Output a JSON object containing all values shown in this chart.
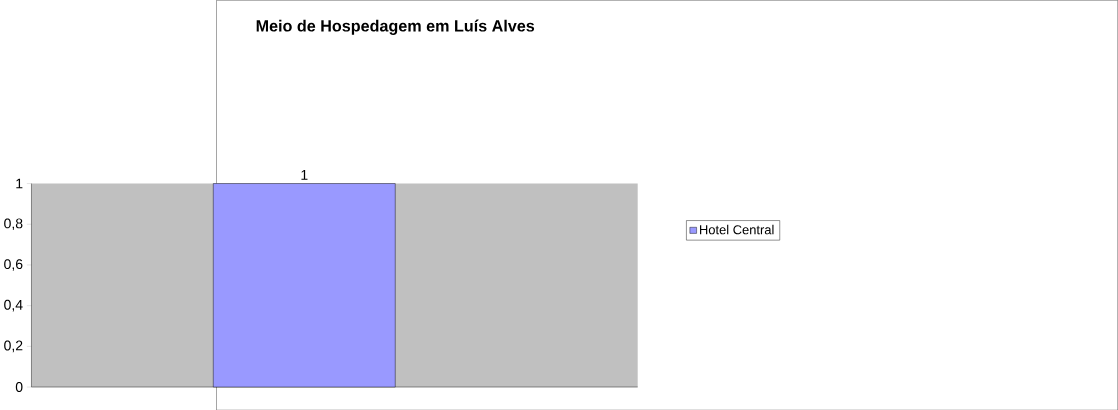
{
  "chart_data": {
    "type": "bar",
    "title": "Meio de Hospedagem em Luís Alves",
    "categories": [
      null
    ],
    "series": [
      {
        "name": "Hotel Central",
        "color": "#9999ff",
        "values": [
          1
        ]
      }
    ],
    "ylim": [
      0,
      1
    ],
    "yticks": [
      0,
      {
        "value": 0.2,
        "label": "0,2"
      },
      {
        "value": 0.4,
        "label": "0,4"
      },
      {
        "value": 0.6,
        "label": "0,6"
      },
      {
        "value": 0.8,
        "label": "0,8"
      },
      1
    ],
    "data_labels": true,
    "legend": "right",
    "grid": false
  }
}
